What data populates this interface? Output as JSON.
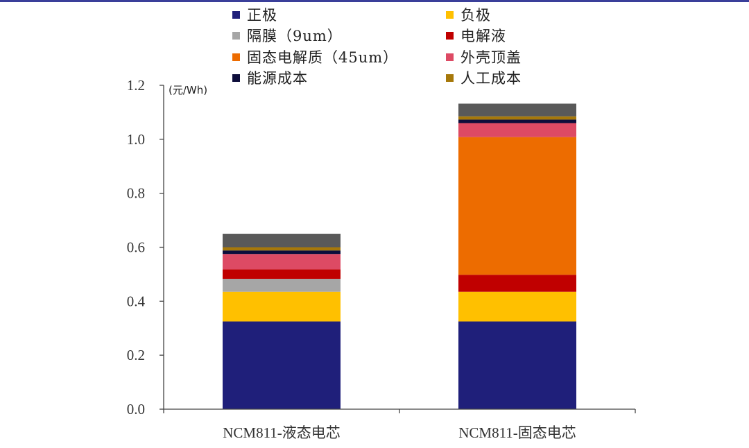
{
  "colors": {
    "top_rule": "#3a3f9a",
    "axis": "#444444"
  },
  "chart_data": {
    "type": "bar",
    "stacked": true,
    "unit_label": "(元/Wh)",
    "categories": [
      "NCM811-液态电芯",
      "NCM811-固态电芯"
    ],
    "ylim": [
      0,
      1.2
    ],
    "yticks": [
      "0.0",
      "0.2",
      "0.4",
      "0.6",
      "0.8",
      "1.0",
      "1.2"
    ],
    "grid": false,
    "legend_position": "top",
    "series": [
      {
        "name": "正极",
        "color": "#1f1f7a",
        "values": [
          0.325,
          0.325
        ]
      },
      {
        "name": "负极",
        "color": "#ffc000",
        "values": [
          0.11,
          0.11
        ]
      },
      {
        "name": "隔膜（9um）",
        "color": "#a6a6a6",
        "values": [
          0.048,
          0
        ]
      },
      {
        "name": "电解液",
        "color": "#c00000",
        "values": [
          0.035,
          0.063
        ]
      },
      {
        "name": "固态电解质（45um）",
        "color": "#ed6c00",
        "values": [
          0,
          0.51
        ]
      },
      {
        "name": "外壳顶盖",
        "color": "#dd4a64",
        "values": [
          0.057,
          0.052
        ]
      },
      {
        "name": "能源成本",
        "color": "#0d0d3b",
        "values": [
          0.013,
          0.013
        ]
      },
      {
        "name": "人工成本",
        "color": "#a6780a",
        "values": [
          0.012,
          0.012
        ]
      },
      {
        "color": "#595959",
        "values": [
          0.05,
          0.047
        ]
      }
    ]
  }
}
